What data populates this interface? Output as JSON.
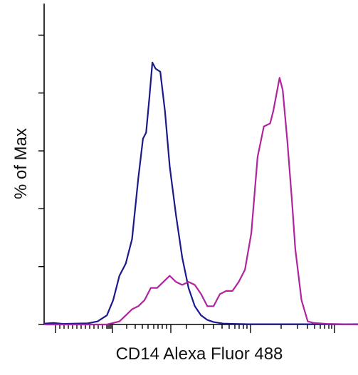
{
  "chart_data": {
    "type": "line",
    "xlabel": "CD14 Alexa Fluor 488",
    "ylabel": "% of Max",
    "x_scale": "biexponential",
    "x_range": [
      0,
      100
    ],
    "ylim": [
      0,
      100
    ],
    "y_ticks": [
      0,
      19,
      38,
      57,
      76,
      95
    ],
    "legend": "none",
    "grid": false,
    "series": [
      {
        "color": "#1a1a8c",
        "x": [
          0,
          3,
          6,
          10,
          14,
          17,
          20,
          22,
          24,
          26,
          28,
          30,
          31.5,
          32.5,
          33.5,
          34.5,
          35.5,
          37,
          38.5,
          40,
          42,
          44,
          46,
          48,
          50,
          52,
          54,
          57,
          60,
          65,
          70,
          80,
          90,
          100
        ],
        "y": [
          0.3,
          0.5,
          0.2,
          0.3,
          0.4,
          1,
          3,
          8,
          16,
          20,
          28,
          48,
          61,
          63,
          74,
          86,
          84,
          83,
          70,
          52,
          36,
          22,
          12,
          6,
          3,
          1.5,
          0.8,
          0.3,
          0.2,
          0.1,
          0.1,
          0.1,
          0.1,
          0.1
        ]
      },
      {
        "color": "#b0249e",
        "x": [
          0,
          20,
          24,
          26,
          28,
          30,
          32,
          34,
          36,
          38,
          40,
          42,
          44,
          46,
          48,
          50,
          52,
          54,
          56,
          58,
          60,
          62,
          64,
          66,
          68,
          70,
          72,
          73,
          75,
          76,
          77.5,
          79,
          80,
          82,
          84,
          86,
          90,
          100
        ],
        "y": [
          0,
          0,
          1,
          3,
          5,
          6,
          8,
          12,
          12,
          14,
          16,
          14,
          13,
          14,
          13,
          10,
          6,
          6,
          10,
          11,
          11,
          14,
          18,
          30,
          55,
          65,
          66,
          70,
          81,
          77,
          60,
          40,
          25,
          8,
          1,
          0.5,
          0.2,
          0
        ]
      }
    ]
  }
}
